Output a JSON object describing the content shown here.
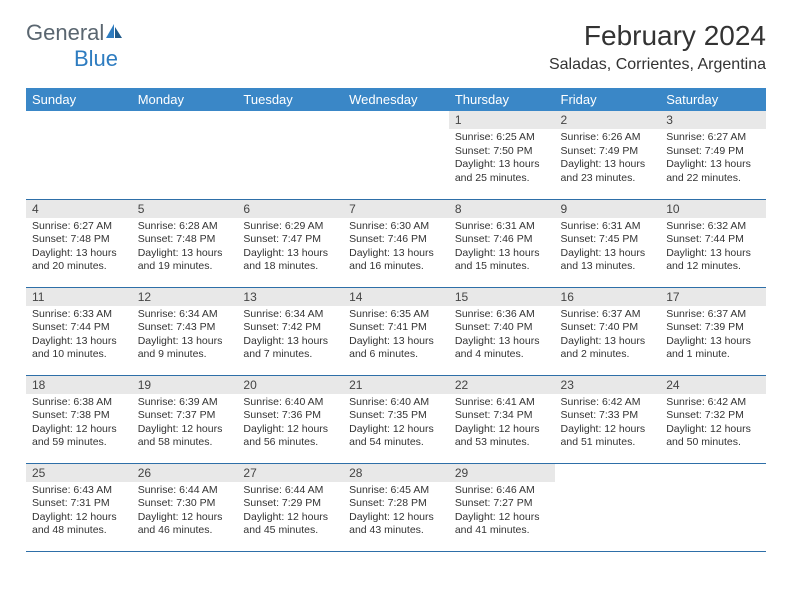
{
  "brand": {
    "general": "General",
    "blue": "Blue"
  },
  "title": "February 2024",
  "location": "Saladas, Corrientes, Argentina",
  "weekdays": [
    "Sunday",
    "Monday",
    "Tuesday",
    "Wednesday",
    "Thursday",
    "Friday",
    "Saturday"
  ],
  "colors": {
    "header_bg": "#3a87c7",
    "header_text": "#ffffff",
    "daynum_bg": "#e8e8e8",
    "border": "#2e6fa8",
    "logo_gray": "#5a6670",
    "logo_blue": "#2e7cc0"
  },
  "typography": {
    "title_size_pt": 21,
    "location_size_pt": 12,
    "weekday_size_pt": 10,
    "daynum_size_pt": 9,
    "body_size_pt": 8
  },
  "layout": {
    "columns": 7,
    "rows": 5,
    "leading_blanks": 4
  },
  "days": [
    {
      "n": "1",
      "sunrise": "Sunrise: 6:25 AM",
      "sunset": "Sunset: 7:50 PM",
      "dl1": "Daylight: 13 hours",
      "dl2": "and 25 minutes."
    },
    {
      "n": "2",
      "sunrise": "Sunrise: 6:26 AM",
      "sunset": "Sunset: 7:49 PM",
      "dl1": "Daylight: 13 hours",
      "dl2": "and 23 minutes."
    },
    {
      "n": "3",
      "sunrise": "Sunrise: 6:27 AM",
      "sunset": "Sunset: 7:49 PM",
      "dl1": "Daylight: 13 hours",
      "dl2": "and 22 minutes."
    },
    {
      "n": "4",
      "sunrise": "Sunrise: 6:27 AM",
      "sunset": "Sunset: 7:48 PM",
      "dl1": "Daylight: 13 hours",
      "dl2": "and 20 minutes."
    },
    {
      "n": "5",
      "sunrise": "Sunrise: 6:28 AM",
      "sunset": "Sunset: 7:48 PM",
      "dl1": "Daylight: 13 hours",
      "dl2": "and 19 minutes."
    },
    {
      "n": "6",
      "sunrise": "Sunrise: 6:29 AM",
      "sunset": "Sunset: 7:47 PM",
      "dl1": "Daylight: 13 hours",
      "dl2": "and 18 minutes."
    },
    {
      "n": "7",
      "sunrise": "Sunrise: 6:30 AM",
      "sunset": "Sunset: 7:46 PM",
      "dl1": "Daylight: 13 hours",
      "dl2": "and 16 minutes."
    },
    {
      "n": "8",
      "sunrise": "Sunrise: 6:31 AM",
      "sunset": "Sunset: 7:46 PM",
      "dl1": "Daylight: 13 hours",
      "dl2": "and 15 minutes."
    },
    {
      "n": "9",
      "sunrise": "Sunrise: 6:31 AM",
      "sunset": "Sunset: 7:45 PM",
      "dl1": "Daylight: 13 hours",
      "dl2": "and 13 minutes."
    },
    {
      "n": "10",
      "sunrise": "Sunrise: 6:32 AM",
      "sunset": "Sunset: 7:44 PM",
      "dl1": "Daylight: 13 hours",
      "dl2": "and 12 minutes."
    },
    {
      "n": "11",
      "sunrise": "Sunrise: 6:33 AM",
      "sunset": "Sunset: 7:44 PM",
      "dl1": "Daylight: 13 hours",
      "dl2": "and 10 minutes."
    },
    {
      "n": "12",
      "sunrise": "Sunrise: 6:34 AM",
      "sunset": "Sunset: 7:43 PM",
      "dl1": "Daylight: 13 hours",
      "dl2": "and 9 minutes."
    },
    {
      "n": "13",
      "sunrise": "Sunrise: 6:34 AM",
      "sunset": "Sunset: 7:42 PM",
      "dl1": "Daylight: 13 hours",
      "dl2": "and 7 minutes."
    },
    {
      "n": "14",
      "sunrise": "Sunrise: 6:35 AM",
      "sunset": "Sunset: 7:41 PM",
      "dl1": "Daylight: 13 hours",
      "dl2": "and 6 minutes."
    },
    {
      "n": "15",
      "sunrise": "Sunrise: 6:36 AM",
      "sunset": "Sunset: 7:40 PM",
      "dl1": "Daylight: 13 hours",
      "dl2": "and 4 minutes."
    },
    {
      "n": "16",
      "sunrise": "Sunrise: 6:37 AM",
      "sunset": "Sunset: 7:40 PM",
      "dl1": "Daylight: 13 hours",
      "dl2": "and 2 minutes."
    },
    {
      "n": "17",
      "sunrise": "Sunrise: 6:37 AM",
      "sunset": "Sunset: 7:39 PM",
      "dl1": "Daylight: 13 hours",
      "dl2": "and 1 minute."
    },
    {
      "n": "18",
      "sunrise": "Sunrise: 6:38 AM",
      "sunset": "Sunset: 7:38 PM",
      "dl1": "Daylight: 12 hours",
      "dl2": "and 59 minutes."
    },
    {
      "n": "19",
      "sunrise": "Sunrise: 6:39 AM",
      "sunset": "Sunset: 7:37 PM",
      "dl1": "Daylight: 12 hours",
      "dl2": "and 58 minutes."
    },
    {
      "n": "20",
      "sunrise": "Sunrise: 6:40 AM",
      "sunset": "Sunset: 7:36 PM",
      "dl1": "Daylight: 12 hours",
      "dl2": "and 56 minutes."
    },
    {
      "n": "21",
      "sunrise": "Sunrise: 6:40 AM",
      "sunset": "Sunset: 7:35 PM",
      "dl1": "Daylight: 12 hours",
      "dl2": "and 54 minutes."
    },
    {
      "n": "22",
      "sunrise": "Sunrise: 6:41 AM",
      "sunset": "Sunset: 7:34 PM",
      "dl1": "Daylight: 12 hours",
      "dl2": "and 53 minutes."
    },
    {
      "n": "23",
      "sunrise": "Sunrise: 6:42 AM",
      "sunset": "Sunset: 7:33 PM",
      "dl1": "Daylight: 12 hours",
      "dl2": "and 51 minutes."
    },
    {
      "n": "24",
      "sunrise": "Sunrise: 6:42 AM",
      "sunset": "Sunset: 7:32 PM",
      "dl1": "Daylight: 12 hours",
      "dl2": "and 50 minutes."
    },
    {
      "n": "25",
      "sunrise": "Sunrise: 6:43 AM",
      "sunset": "Sunset: 7:31 PM",
      "dl1": "Daylight: 12 hours",
      "dl2": "and 48 minutes."
    },
    {
      "n": "26",
      "sunrise": "Sunrise: 6:44 AM",
      "sunset": "Sunset: 7:30 PM",
      "dl1": "Daylight: 12 hours",
      "dl2": "and 46 minutes."
    },
    {
      "n": "27",
      "sunrise": "Sunrise: 6:44 AM",
      "sunset": "Sunset: 7:29 PM",
      "dl1": "Daylight: 12 hours",
      "dl2": "and 45 minutes."
    },
    {
      "n": "28",
      "sunrise": "Sunrise: 6:45 AM",
      "sunset": "Sunset: 7:28 PM",
      "dl1": "Daylight: 12 hours",
      "dl2": "and 43 minutes."
    },
    {
      "n": "29",
      "sunrise": "Sunrise: 6:46 AM",
      "sunset": "Sunset: 7:27 PM",
      "dl1": "Daylight: 12 hours",
      "dl2": "and 41 minutes."
    }
  ]
}
